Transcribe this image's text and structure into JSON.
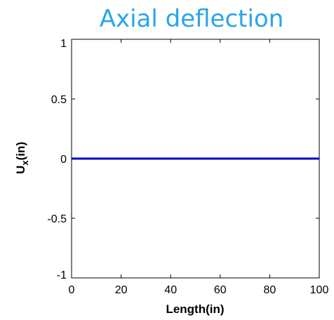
{
  "chart_data": {
    "type": "line",
    "title": "Axial deflection",
    "xlabel": "Length(in)",
    "ylabel_main": "U",
    "ylabel_sub": "x",
    "ylabel_suffix": "(in)",
    "xlim": [
      0,
      100
    ],
    "ylim": [
      -1,
      1
    ],
    "xticks": [
      0,
      20,
      40,
      60,
      80,
      100
    ],
    "xtick_labels": [
      "0",
      "20",
      "40",
      "60",
      "80",
      "100"
    ],
    "yticks": [
      -1,
      -0.5,
      0,
      0.5,
      1
    ],
    "ytick_labels": [
      "-1",
      "-0.5",
      "0",
      "0.5",
      "1"
    ],
    "grid": false,
    "series": [
      {
        "x": [
          0,
          100
        ],
        "y": [
          0,
          0
        ],
        "color": "#0000cc"
      }
    ],
    "colors": {
      "title": "#2aa5e6",
      "axes": "#000000",
      "line": "#0000cc"
    }
  }
}
